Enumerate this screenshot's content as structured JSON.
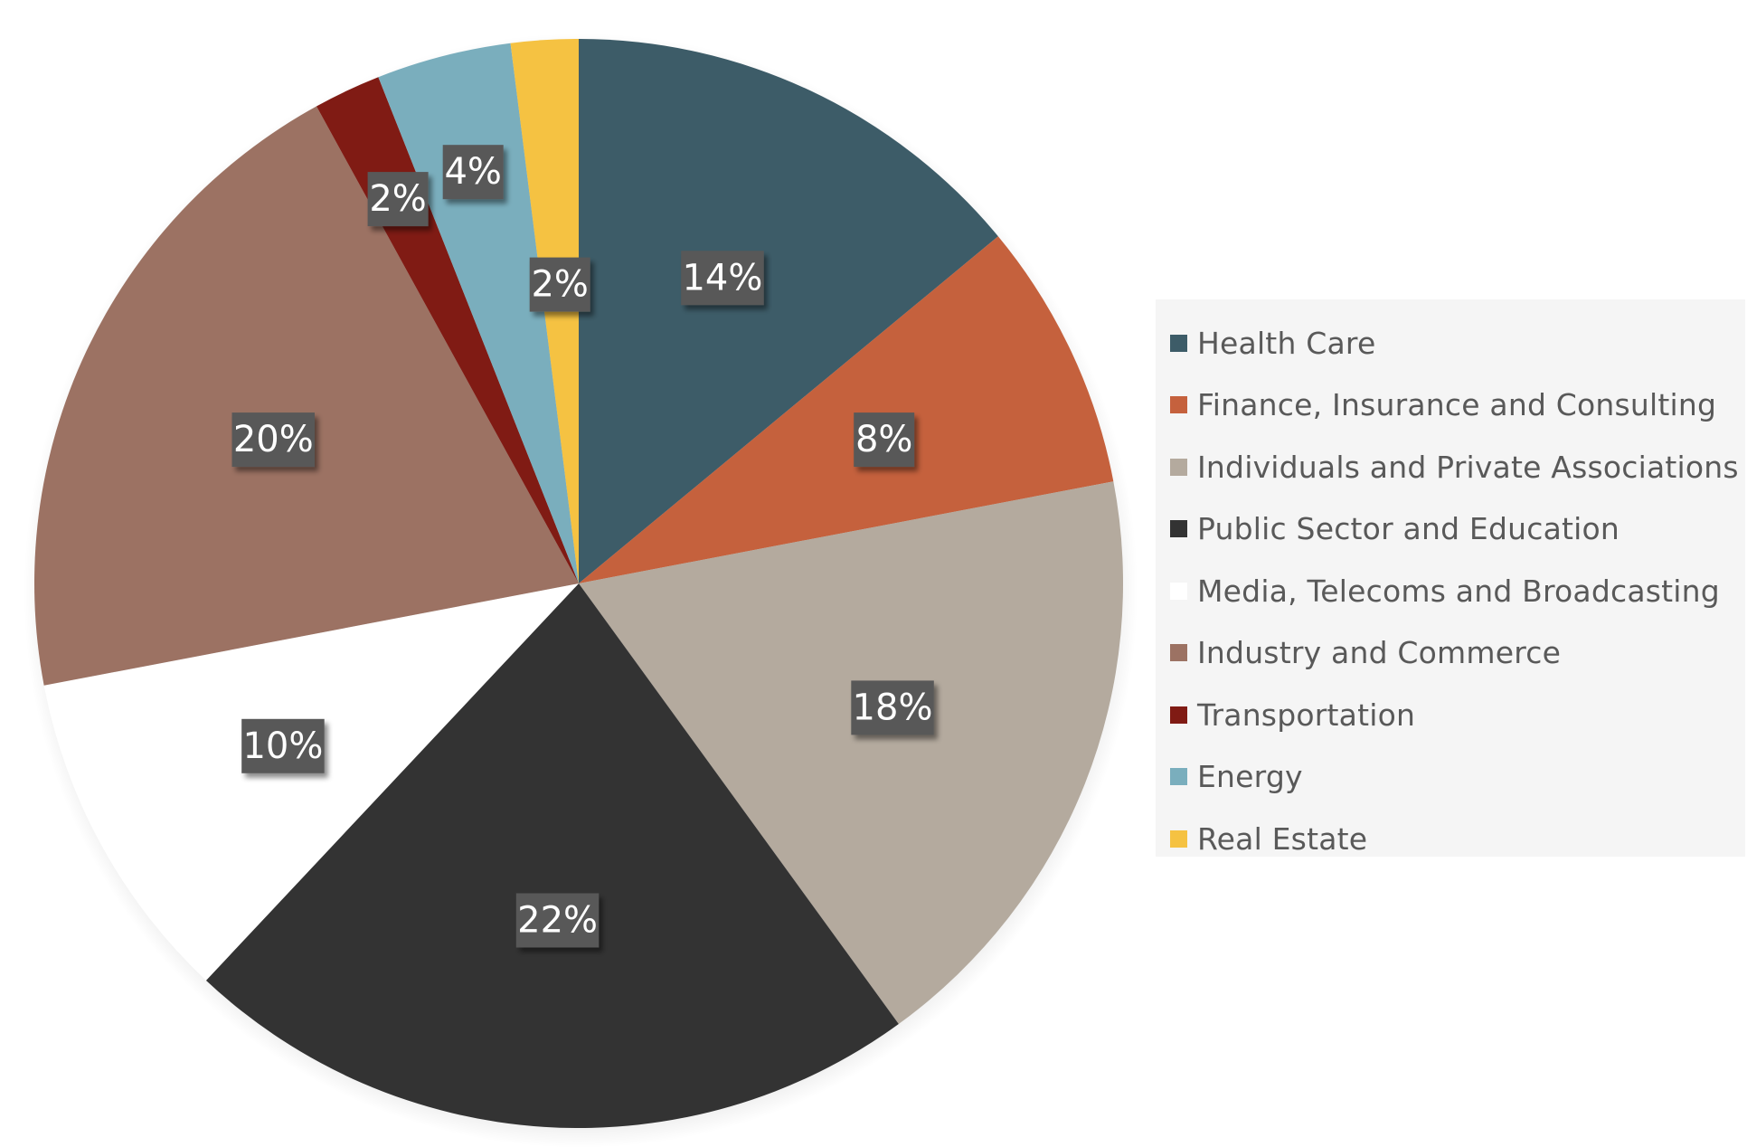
{
  "chart_data": {
    "type": "pie",
    "title": "",
    "start_angle_deg": 0,
    "direction": "clockwise",
    "slices": [
      {
        "label": "Health Care",
        "value": 14,
        "display": "14%",
        "color": "#3d5c68"
      },
      {
        "label": "Finance, Insurance and Consulting",
        "value": 8,
        "display": "8%",
        "color": "#c5613d"
      },
      {
        "label": "Individuals and Private Associations",
        "value": 18,
        "display": "18%",
        "color": "#b4aa9e"
      },
      {
        "label": "Public Sector and Education",
        "value": 22,
        "display": "22%",
        "color": "#333333"
      },
      {
        "label": "Media, Telecoms and Broadcasting",
        "value": 10,
        "display": "10%",
        "color": "#ffffff"
      },
      {
        "label": "Industry and Commerce",
        "value": 20,
        "display": "20%",
        "color": "#9c7263"
      },
      {
        "label": "Transportation",
        "value": 2,
        "display": "2%",
        "color": "#801b14"
      },
      {
        "label": "Energy",
        "value": 4,
        "display": "4%",
        "color": "#7aaebd"
      },
      {
        "label": "Real Estate",
        "value": 2,
        "display": "2%",
        "color": "#f5c242"
      }
    ],
    "legend_position": "right",
    "data_labels": "percent",
    "label_box_color": "#595959"
  }
}
